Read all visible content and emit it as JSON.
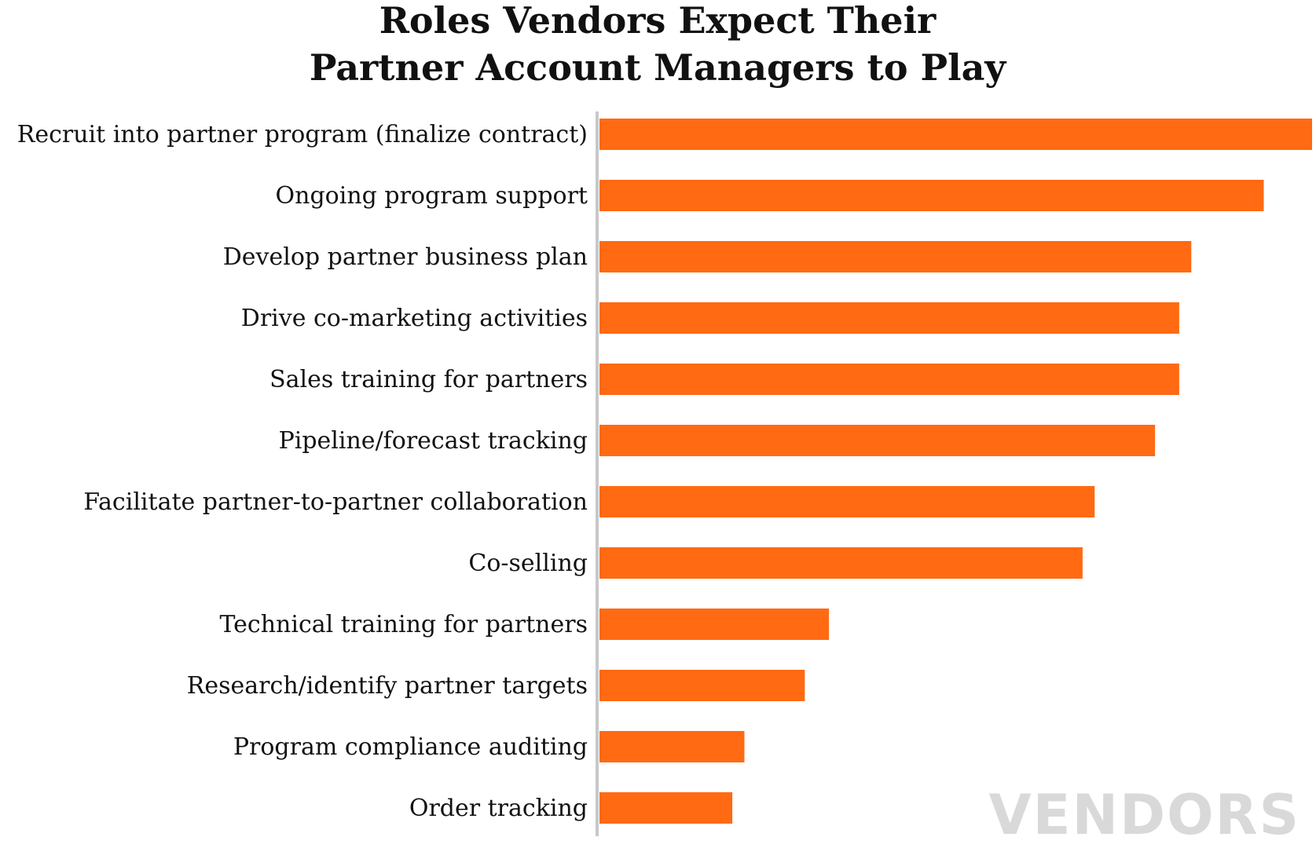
{
  "chart_data": {
    "type": "bar",
    "orientation": "horizontal",
    "title_lines": [
      "Roles Vendors Expect Their",
      "Partner Account Managers to Play"
    ],
    "categories": [
      "Recruit into partner program (finalize contract)",
      "Ongoing program support",
      "Develop partner business plan",
      "Drive co-marketing activities",
      "Sales training for partners",
      "Pipeline/forecast tracking",
      "Facilitate partner-to-partner collaboration",
      "Co-selling",
      "Technical training for partners",
      "Research/identify partner targets",
      "Program compliance auditing",
      "Order tracking"
    ],
    "values": [
      59,
      55,
      49,
      48,
      48,
      46,
      41,
      40,
      19,
      17,
      12,
      11
    ],
    "xlim": [
      0,
      59
    ],
    "grid": false,
    "legend": "none",
    "bar_color": "#ff6a13",
    "axis_color": "#c8c8c8"
  },
  "watermark": {
    "text": "VENDORS",
    "color": "#d9d9d9"
  }
}
